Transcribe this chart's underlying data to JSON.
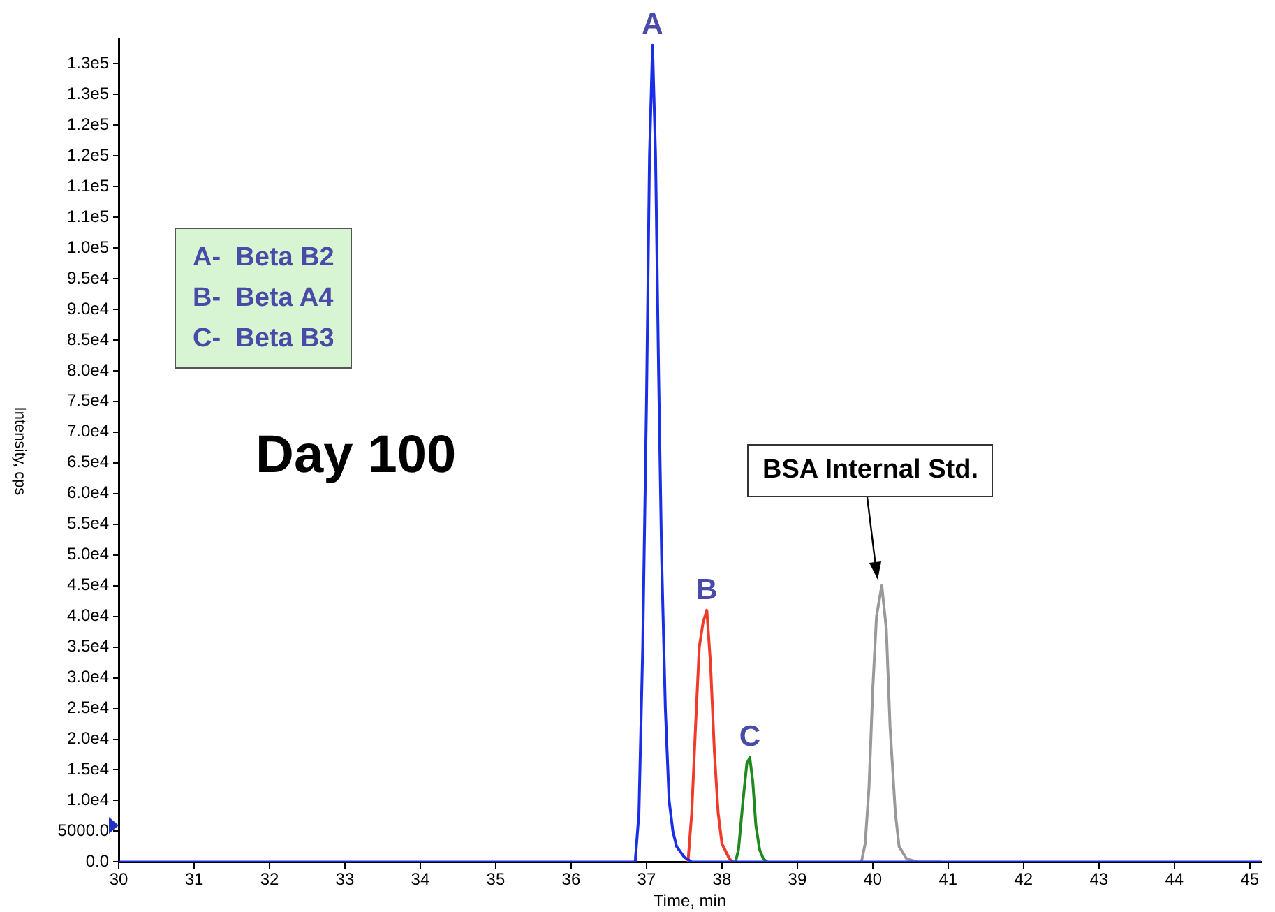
{
  "chart_data": {
    "type": "line",
    "xlabel": "Time, min",
    "ylabel": "Intensity, cps",
    "xlim": [
      30,
      45.15
    ],
    "xticks": [
      30,
      31,
      32,
      33,
      34,
      35,
      36,
      37,
      38,
      39,
      40,
      41,
      42,
      43,
      44,
      45
    ],
    "ylim": [
      0,
      134000
    ],
    "yticks": [
      {
        "value": 0,
        "label": "0.0"
      },
      {
        "value": 5000,
        "label": "5000.0"
      },
      {
        "value": 10000,
        "label": "1.0e4"
      },
      {
        "value": 15000,
        "label": "1.5e4"
      },
      {
        "value": 20000,
        "label": "2.0e4"
      },
      {
        "value": 25000,
        "label": "2.5e4"
      },
      {
        "value": 30000,
        "label": "3.0e4"
      },
      {
        "value": 35000,
        "label": "3.5e4"
      },
      {
        "value": 40000,
        "label": "4.0e4"
      },
      {
        "value": 45000,
        "label": "4.5e4"
      },
      {
        "value": 50000,
        "label": "5.0e4"
      },
      {
        "value": 55000,
        "label": "5.5e4"
      },
      {
        "value": 60000,
        "label": "6.0e4"
      },
      {
        "value": 65000,
        "label": "6.5e4"
      },
      {
        "value": 70000,
        "label": "7.0e4"
      },
      {
        "value": 75000,
        "label": "7.5e4"
      },
      {
        "value": 80000,
        "label": "8.0e4"
      },
      {
        "value": 85000,
        "label": "8.5e4"
      },
      {
        "value": 90000,
        "label": "9.0e4"
      },
      {
        "value": 95000,
        "label": "9.5e4"
      },
      {
        "value": 100000,
        "label": "1.0e5"
      },
      {
        "value": 105000,
        "label": "1.1e5"
      },
      {
        "value": 110000,
        "label": "1.1e5"
      },
      {
        "value": 115000,
        "label": "1.2e5"
      },
      {
        "value": 120000,
        "label": "1.2e5"
      },
      {
        "value": 125000,
        "label": "1.3e5"
      },
      {
        "value": 130000,
        "label": "1.3e5"
      }
    ],
    "grid": false,
    "marker": "none",
    "line_style": "solid",
    "series": [
      {
        "color": "#1a2ee8",
        "x": [
          30,
          36.85,
          36.9,
          36.95,
          37.0,
          37.04,
          37.08,
          37.12,
          37.16,
          37.2,
          37.25,
          37.3,
          37.35,
          37.4,
          37.5,
          37.6,
          45.15
        ],
        "values": [
          0,
          0,
          8000,
          35000,
          75000,
          115000,
          133000,
          115000,
          80000,
          50000,
          25000,
          10000,
          5000,
          2500,
          800,
          0,
          0
        ]
      },
      {
        "color": "#f03a2a",
        "x": [
          37.55,
          37.6,
          37.65,
          37.7,
          37.75,
          37.8,
          37.85,
          37.9,
          37.95,
          38.0,
          38.1,
          38.15
        ],
        "values": [
          0,
          8000,
          22000,
          35000,
          39000,
          41000,
          32000,
          18000,
          8000,
          3000,
          500,
          0
        ]
      },
      {
        "color": "#1e8a1e",
        "x": [
          38.18,
          38.22,
          38.28,
          38.33,
          38.37,
          38.41,
          38.45,
          38.5,
          38.55,
          38.6
        ],
        "values": [
          0,
          2000,
          10000,
          16000,
          17000,
          13000,
          6000,
          2000,
          500,
          0
        ]
      },
      {
        "color": "#999999",
        "x": [
          39.85,
          39.9,
          39.95,
          40.0,
          40.05,
          40.12,
          40.18,
          40.23,
          40.3,
          40.35,
          40.45,
          40.6,
          40.9
        ],
        "values": [
          0,
          3000,
          12000,
          28000,
          40000,
          45000,
          38000,
          22000,
          8000,
          2500,
          500,
          0,
          0
        ]
      }
    ],
    "annotations": [
      "A-  Beta B2",
      "B-  Beta A4",
      "C-  Beta B3",
      "Day 100",
      "BSA Internal Std.",
      {
        "text": "A",
        "x": 37.08,
        "y": 133000
      },
      {
        "text": "B",
        "x": 37.8,
        "y": 41000
      },
      {
        "text": "C",
        "x": 38.37,
        "y": 17000
      }
    ]
  }
}
